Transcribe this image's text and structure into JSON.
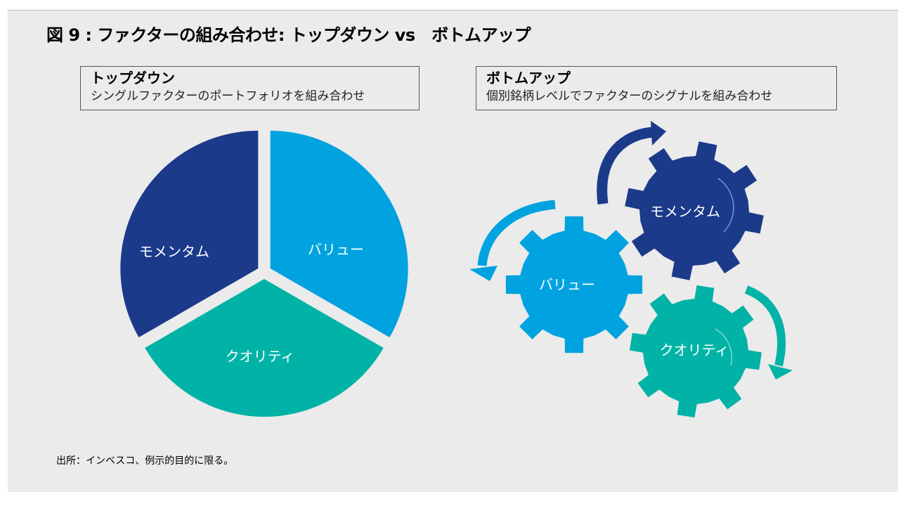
{
  "figure_title": "図 9 : ファクターの組み合わせ: トップダウン vs　ボトムアップ",
  "top_down": {
    "title": "トップダウン",
    "subtitle": "シングルファクターのポートフォリオを組み合わせ",
    "segments": [
      {
        "label": "モメンタム",
        "color": "#1b3a8a"
      },
      {
        "label": "バリュー",
        "color": "#00a3e0"
      },
      {
        "label": "クオリティ",
        "color": "#00b3a6"
      }
    ]
  },
  "bottom_up": {
    "title": "ボトムアップ",
    "subtitle": "個別銘柄レベルでファクターのシグナルを組み合わせ",
    "gears": [
      {
        "label": "モメンタム",
        "color": "#1b3a8a"
      },
      {
        "label": "バリュー",
        "color": "#00a3e0"
      },
      {
        "label": "クオリティ",
        "color": "#00b3a6"
      }
    ]
  },
  "source": "出所：インベスコ、例示的目的に限る。"
}
